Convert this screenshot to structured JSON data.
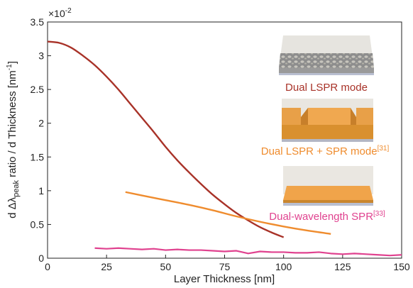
{
  "chart_data": {
    "type": "line",
    "xlabel": "Layer Thickness [nm]",
    "ylabel": {
      "prefix": "d Δλ",
      "subscript": "peak",
      "middle": " ratio / d Thickness [nm",
      "superscript": "-1",
      "suffix": "]"
    },
    "y_multiplier": {
      "base": "×10",
      "exponent": "-2"
    },
    "xlim": [
      0,
      150
    ],
    "ylim": [
      0,
      3.5
    ],
    "x_ticks": [
      0,
      25,
      50,
      75,
      100,
      125,
      150
    ],
    "y_ticks": [
      {
        "value": 0,
        "label": "0"
      },
      {
        "value": 0.5,
        "label": "0.5"
      },
      {
        "value": 1,
        "label": "1"
      },
      {
        "value": 1.5,
        "label": "1.5"
      },
      {
        "value": 2,
        "label": "2"
      },
      {
        "value": 2.5,
        "label": "2.5"
      },
      {
        "value": 3,
        "label": "3"
      },
      {
        "value": 3.5,
        "label": "3.5"
      }
    ],
    "series": [
      {
        "name": "Dual LSPR mode",
        "color": "#a83228",
        "x": [
          0,
          5,
          10,
          15,
          20,
          25,
          30,
          35,
          40,
          45,
          50,
          55,
          60,
          65,
          70,
          75,
          80,
          85,
          90,
          95,
          100
        ],
        "y": [
          3.21,
          3.19,
          3.12,
          3.0,
          2.86,
          2.69,
          2.5,
          2.29,
          2.08,
          1.87,
          1.65,
          1.45,
          1.27,
          1.1,
          0.94,
          0.8,
          0.67,
          0.56,
          0.46,
          0.38,
          0.31
        ]
      },
      {
        "name": "Dual LSPR + SPR mode",
        "reference": "[31]",
        "color": "#ef8c2e",
        "x": [
          33,
          40,
          50,
          60,
          70,
          80,
          90,
          100,
          110,
          120
        ],
        "y": [
          0.98,
          0.93,
          0.86,
          0.79,
          0.71,
          0.62,
          0.54,
          0.47,
          0.41,
          0.36
        ]
      },
      {
        "name": "Dual-wavelength SPR",
        "reference": "[33]",
        "color": "#e0428f",
        "x": [
          20,
          25,
          30,
          35,
          40,
          45,
          50,
          55,
          60,
          65,
          70,
          75,
          80,
          85,
          90,
          95,
          100,
          105,
          110,
          115,
          120,
          125,
          130,
          135,
          140,
          145,
          150
        ],
        "y": [
          0.15,
          0.14,
          0.15,
          0.14,
          0.13,
          0.14,
          0.12,
          0.13,
          0.12,
          0.12,
          0.11,
          0.1,
          0.11,
          0.07,
          0.1,
          0.09,
          0.09,
          0.08,
          0.08,
          0.09,
          0.07,
          0.06,
          0.07,
          0.06,
          0.05,
          0.04,
          0.05
        ]
      }
    ],
    "grid": false
  }
}
